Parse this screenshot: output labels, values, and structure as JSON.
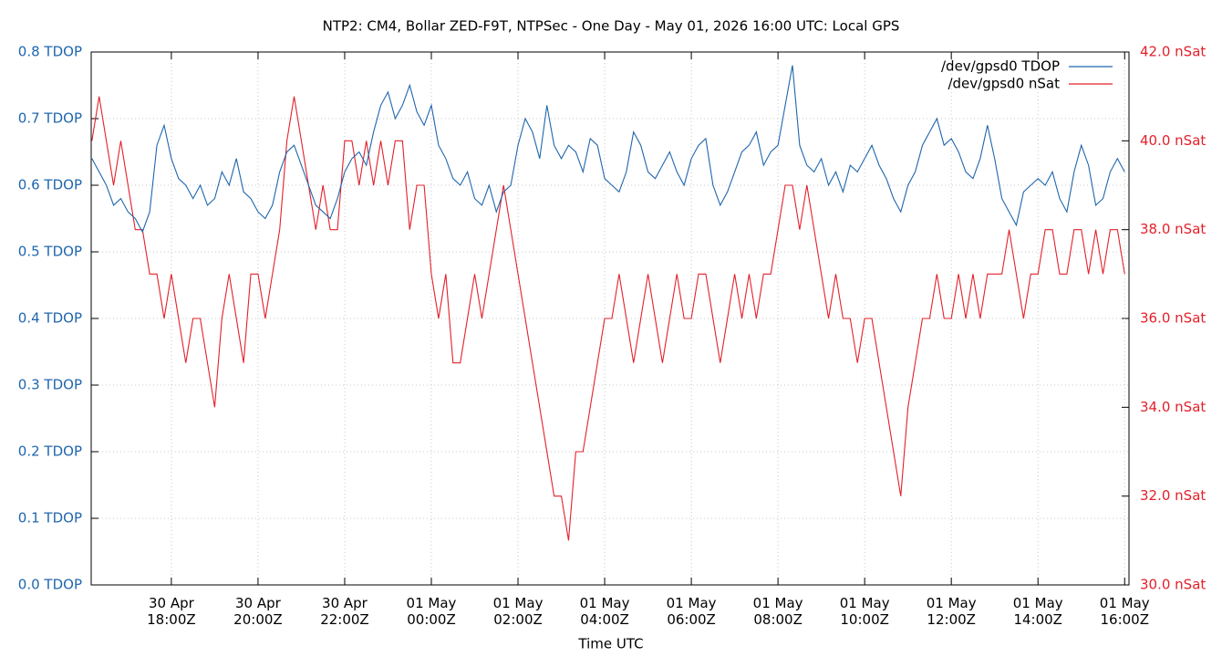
{
  "chart_data": {
    "type": "line",
    "title": "NTP2: CM4, Bollar ZED-F9T, NTPSec - One Day - May 01, 2026 16:00 UTC: Local GPS",
    "x_label": "Time UTC",
    "x": [
      "04-30 16:10",
      "04-30 16:20",
      "04-30 16:30",
      "04-30 16:40",
      "04-30 16:50",
      "04-30 17:00",
      "04-30 17:10",
      "04-30 17:20",
      "04-30 17:30",
      "04-30 17:40",
      "04-30 17:50",
      "04-30 18:00",
      "04-30 18:10",
      "04-30 18:20",
      "04-30 18:30",
      "04-30 18:40",
      "04-30 18:50",
      "04-30 19:00",
      "04-30 19:10",
      "04-30 19:20",
      "04-30 19:30",
      "04-30 19:40",
      "04-30 19:50",
      "04-30 20:00",
      "04-30 20:10",
      "04-30 20:20",
      "04-30 20:30",
      "04-30 20:40",
      "04-30 20:50",
      "04-30 21:00",
      "04-30 21:10",
      "04-30 21:20",
      "04-30 21:30",
      "04-30 21:40",
      "04-30 21:50",
      "04-30 22:00",
      "04-30 22:10",
      "04-30 22:20",
      "04-30 22:30",
      "04-30 22:40",
      "04-30 22:50",
      "04-30 23:00",
      "04-30 23:10",
      "04-30 23:20",
      "04-30 23:30",
      "04-30 23:40",
      "04-30 23:50",
      "05-01 00:00",
      "05-01 00:10",
      "05-01 00:20",
      "05-01 00:30",
      "05-01 00:40",
      "05-01 00:50",
      "05-01 01:00",
      "05-01 01:10",
      "05-01 01:20",
      "05-01 01:30",
      "05-01 01:40",
      "05-01 01:50",
      "05-01 02:00",
      "05-01 02:10",
      "05-01 02:20",
      "05-01 02:30",
      "05-01 02:40",
      "05-01 02:50",
      "05-01 03:00",
      "05-01 03:10",
      "05-01 03:20",
      "05-01 03:30",
      "05-01 03:40",
      "05-01 03:50",
      "05-01 04:00",
      "05-01 04:10",
      "05-01 04:20",
      "05-01 04:30",
      "05-01 04:40",
      "05-01 04:50",
      "05-01 05:00",
      "05-01 05:10",
      "05-01 05:20",
      "05-01 05:30",
      "05-01 05:40",
      "05-01 05:50",
      "05-01 06:00",
      "05-01 06:10",
      "05-01 06:20",
      "05-01 06:30",
      "05-01 06:40",
      "05-01 06:50",
      "05-01 07:00",
      "05-01 07:10",
      "05-01 07:20",
      "05-01 07:30",
      "05-01 07:40",
      "05-01 07:50",
      "05-01 08:00",
      "05-01 08:10",
      "05-01 08:20",
      "05-01 08:30",
      "05-01 08:40",
      "05-01 08:50",
      "05-01 09:00",
      "05-01 09:10",
      "05-01 09:20",
      "05-01 09:30",
      "05-01 09:40",
      "05-01 09:50",
      "05-01 10:00",
      "05-01 10:10",
      "05-01 10:20",
      "05-01 10:30",
      "05-01 10:40",
      "05-01 10:50",
      "05-01 11:00",
      "05-01 11:10",
      "05-01 11:20",
      "05-01 11:30",
      "05-01 11:40",
      "05-01 11:50",
      "05-01 12:00",
      "05-01 12:10",
      "05-01 12:20",
      "05-01 12:30",
      "05-01 12:40",
      "05-01 12:50",
      "05-01 13:00",
      "05-01 13:10",
      "05-01 13:20",
      "05-01 13:30",
      "05-01 13:40",
      "05-01 13:50",
      "05-01 14:00",
      "05-01 14:10",
      "05-01 14:20",
      "05-01 14:30",
      "05-01 14:40",
      "05-01 14:50",
      "05-01 15:00",
      "05-01 15:10",
      "05-01 15:20",
      "05-01 15:30",
      "05-01 15:40",
      "05-01 15:50",
      "05-01 16:00"
    ],
    "xlim": [
      "04-30 16:09",
      "05-01 16:06"
    ],
    "xticks": [
      {
        "value": "04-30 18:00",
        "label": "30 Apr\n18:00Z"
      },
      {
        "value": "04-30 20:00",
        "label": "30 Apr\n20:00Z"
      },
      {
        "value": "04-30 22:00",
        "label": "30 Apr\n22:00Z"
      },
      {
        "value": "05-01 00:00",
        "label": "01 May\n00:00Z"
      },
      {
        "value": "05-01 02:00",
        "label": "01 May\n02:00Z"
      },
      {
        "value": "05-01 04:00",
        "label": "01 May\n04:00Z"
      },
      {
        "value": "05-01 06:00",
        "label": "01 May\n06:00Z"
      },
      {
        "value": "05-01 08:00",
        "label": "01 May\n08:00Z"
      },
      {
        "value": "05-01 10:00",
        "label": "01 May\n10:00Z"
      },
      {
        "value": "05-01 12:00",
        "label": "01 May\n12:00Z"
      },
      {
        "value": "05-01 14:00",
        "label": "01 May\n14:00Z"
      },
      {
        "value": "05-01 16:00",
        "label": "01 May\n16:00Z"
      }
    ],
    "ylim": [
      0,
      0.8
    ],
    "yticks": [
      {
        "value": 0,
        "label": "0.0 TDOP"
      },
      {
        "value": 0.1,
        "label": "0.1 TDOP"
      },
      {
        "value": 0.2,
        "label": "0.2 TDOP"
      },
      {
        "value": 0.3,
        "label": "0.3 TDOP"
      },
      {
        "value": 0.4,
        "label": "0.4 TDOP"
      },
      {
        "value": 0.5,
        "label": "0.5 TDOP"
      },
      {
        "value": 0.6,
        "label": "0.6 TDOP"
      },
      {
        "value": 0.7,
        "label": "0.7 TDOP"
      },
      {
        "value": 0.8,
        "label": "0.8 TDOP"
      }
    ],
    "y2lim": [
      30,
      42
    ],
    "y2ticks": [
      {
        "value": 30,
        "label": "30.0 nSat"
      },
      {
        "value": 32,
        "label": "32.0 nSat"
      },
      {
        "value": 34,
        "label": "34.0 nSat"
      },
      {
        "value": 36,
        "label": "36.0 nSat"
      },
      {
        "value": 38,
        "label": "38.0 nSat"
      },
      {
        "value": 40,
        "label": "40.0 nSat"
      },
      {
        "value": 42,
        "label": "42.0 nSat"
      }
    ],
    "grid": true,
    "legend": "top-right",
    "series": [
      {
        "name": "/dev/gpsd0 TDOP",
        "color": "#1f66ad",
        "axis": "y",
        "values": [
          0.64,
          0.62,
          0.6,
          0.57,
          0.58,
          0.56,
          0.55,
          0.53,
          0.56,
          0.66,
          0.69,
          0.64,
          0.61,
          0.6,
          0.58,
          0.6,
          0.57,
          0.58,
          0.62,
          0.6,
          0.64,
          0.59,
          0.58,
          0.56,
          0.55,
          0.57,
          0.62,
          0.65,
          0.66,
          0.63,
          0.6,
          0.57,
          0.56,
          0.55,
          0.58,
          0.62,
          0.64,
          0.65,
          0.63,
          0.68,
          0.72,
          0.74,
          0.7,
          0.72,
          0.75,
          0.71,
          0.69,
          0.72,
          0.66,
          0.64,
          0.61,
          0.6,
          0.62,
          0.58,
          0.57,
          0.6,
          0.56,
          0.59,
          0.6,
          0.66,
          0.7,
          0.68,
          0.64,
          0.72,
          0.66,
          0.64,
          0.66,
          0.65,
          0.62,
          0.67,
          0.66,
          0.61,
          0.6,
          0.59,
          0.62,
          0.68,
          0.66,
          0.62,
          0.61,
          0.63,
          0.65,
          0.62,
          0.6,
          0.64,
          0.66,
          0.67,
          0.6,
          0.57,
          0.59,
          0.62,
          0.65,
          0.66,
          0.68,
          0.63,
          0.65,
          0.66,
          0.72,
          0.78,
          0.66,
          0.63,
          0.62,
          0.64,
          0.6,
          0.62,
          0.59,
          0.63,
          0.62,
          0.64,
          0.66,
          0.63,
          0.61,
          0.58,
          0.56,
          0.6,
          0.62,
          0.66,
          0.68,
          0.7,
          0.66,
          0.67,
          0.65,
          0.62,
          0.61,
          0.64,
          0.69,
          0.64,
          0.58,
          0.56,
          0.54,
          0.59,
          0.6,
          0.61,
          0.6,
          0.62,
          0.58,
          0.56,
          0.62,
          0.66,
          0.63,
          0.57,
          0.58,
          0.62,
          0.64,
          0.62
        ]
      },
      {
        "name": "/dev/gpsd0 nSat",
        "color": "#e3202a",
        "axis": "y2",
        "values": [
          40,
          41,
          40,
          39,
          40,
          39,
          38,
          38,
          37,
          37,
          36,
          37,
          36,
          35,
          36,
          36,
          35,
          34,
          36,
          37,
          36,
          35,
          37,
          37,
          36,
          37,
          38,
          40,
          41,
          40,
          39,
          38,
          39,
          38,
          38,
          40,
          40,
          39,
          40,
          39,
          40,
          39,
          40,
          40,
          38,
          39,
          39,
          37,
          36,
          37,
          35,
          35,
          36,
          37,
          36,
          37,
          38,
          39,
          38,
          37,
          36,
          35,
          34,
          33,
          32,
          32,
          31,
          33,
          33,
          34,
          35,
          36,
          36,
          37,
          36,
          35,
          36,
          37,
          36,
          35,
          36,
          37,
          36,
          36,
          37,
          37,
          36,
          35,
          36,
          37,
          36,
          37,
          36,
          37,
          37,
          38,
          39,
          39,
          38,
          39,
          38,
          37,
          36,
          37,
          36,
          36,
          35,
          36,
          36,
          35,
          34,
          33,
          32,
          34,
          35,
          36,
          36,
          37,
          36,
          36,
          37,
          36,
          37,
          36,
          37,
          37,
          37,
          38,
          37,
          36,
          37,
          37,
          38,
          38,
          37,
          37,
          38,
          38,
          37,
          38,
          37,
          38,
          38,
          37
        ]
      }
    ]
  }
}
